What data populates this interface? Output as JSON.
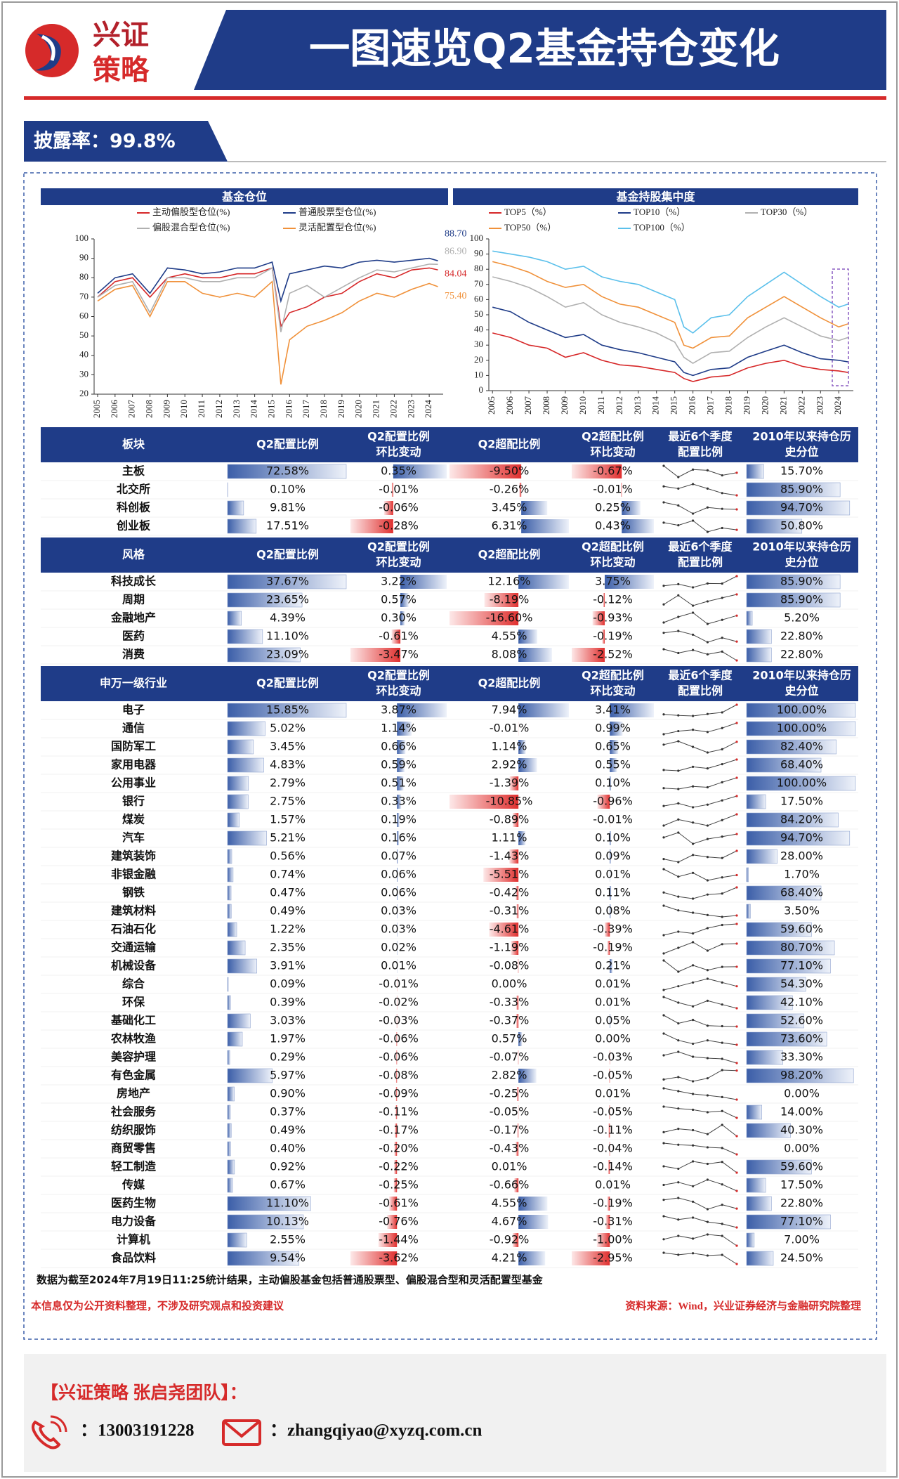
{
  "header": {
    "logo_line1": "兴证",
    "logo_line2": "策略",
    "title": "一图速览Q2基金持仓变化",
    "disclosure": "披露率：99.8%"
  },
  "chart_data": [
    {
      "type": "line",
      "title": "基金仓位",
      "x": [
        2005,
        2006,
        2007,
        2008,
        2009,
        2010,
        2011,
        2012,
        2013,
        2014,
        2015,
        2015.5,
        2016,
        2017,
        2018,
        2019,
        2020,
        2021,
        2022,
        2023,
        2024,
        2024.5
      ],
      "xlim": [
        2004.8,
        2024.8
      ],
      "xticks": [
        2005,
        2006,
        2007,
        2008,
        2009,
        2010,
        2011,
        2012,
        2013,
        2014,
        2015,
        2016,
        2017,
        2018,
        2019,
        2020,
        2021,
        2022,
        2023,
        2024
      ],
      "ylim": [
        20,
        100
      ],
      "yticks": [
        20,
        30,
        40,
        50,
        60,
        70,
        80,
        90,
        100
      ],
      "series": [
        {
          "name": "主动偏股型仓位(%)",
          "color": "#d62728",
          "values": [
            70,
            78,
            80,
            70,
            80,
            82,
            80,
            80,
            82,
            82,
            85,
            55,
            62,
            65,
            70,
            72,
            78,
            82,
            80,
            84,
            85,
            84.04
          ],
          "end_label": "84.04"
        },
        {
          "name": "普通股票型仓位(%)",
          "color": "#1f3c88",
          "values": [
            72,
            80,
            82,
            72,
            85,
            84,
            82,
            83,
            85,
            85,
            88,
            68,
            82,
            84,
            86,
            85,
            88,
            89,
            88,
            89,
            90,
            88.7
          ],
          "end_label": "88.70"
        },
        {
          "name": "偏股混合型仓位(%)",
          "color": "#b0b0b0",
          "values": [
            70,
            76,
            78,
            62,
            80,
            80,
            78,
            78,
            80,
            80,
            85,
            52,
            72,
            76,
            70,
            75,
            80,
            84,
            83,
            85,
            87,
            86.9
          ],
          "end_label": "86.90"
        },
        {
          "name": "灵活配置型仓位(%)",
          "color": "#f0913a",
          "values": [
            68,
            74,
            76,
            60,
            78,
            78,
            72,
            70,
            72,
            70,
            78,
            25,
            48,
            55,
            58,
            62,
            68,
            72,
            70,
            74,
            77,
            75.4
          ],
          "end_label": "75.40"
        }
      ]
    },
    {
      "type": "line",
      "title": "基金持股集中度",
      "x": [
        2005,
        2006,
        2007,
        2008,
        2009,
        2010,
        2011,
        2012,
        2013,
        2014,
        2015,
        2015.5,
        2016,
        2017,
        2018,
        2019,
        2020,
        2021,
        2022,
        2023,
        2024,
        2024.5
      ],
      "xlim": [
        2004.8,
        2024.8
      ],
      "xticks": [
        2005,
        2006,
        2007,
        2008,
        2009,
        2010,
        2011,
        2012,
        2013,
        2014,
        2015,
        2016,
        2017,
        2018,
        2019,
        2020,
        2021,
        2022,
        2023,
        2024
      ],
      "ylim": [
        0,
        100
      ],
      "yticks": [
        0,
        10,
        20,
        30,
        40,
        50,
        60,
        70,
        80,
        90,
        100
      ],
      "series": [
        {
          "name": "TOP5（%）",
          "color": "#d62728",
          "values": [
            38,
            35,
            30,
            28,
            22,
            25,
            20,
            17,
            16,
            14,
            12,
            8,
            6,
            9,
            10,
            15,
            18,
            20,
            16,
            14,
            13,
            12
          ]
        },
        {
          "name": "TOP10（%）",
          "color": "#1f3c88",
          "values": [
            55,
            52,
            45,
            40,
            35,
            37,
            30,
            27,
            25,
            22,
            19,
            12,
            10,
            14,
            15,
            22,
            26,
            30,
            25,
            21,
            20,
            19
          ]
        },
        {
          "name": "TOP30（%）",
          "color": "#b0b0b0",
          "values": [
            75,
            72,
            68,
            62,
            55,
            58,
            50,
            45,
            42,
            38,
            32,
            22,
            18,
            25,
            26,
            35,
            42,
            48,
            42,
            36,
            33,
            35
          ]
        },
        {
          "name": "TOP50（%）",
          "color": "#f0913a",
          "values": [
            85,
            82,
            78,
            72,
            68,
            70,
            62,
            57,
            55,
            50,
            45,
            30,
            28,
            35,
            36,
            48,
            55,
            62,
            55,
            48,
            42,
            44
          ]
        },
        {
          "name": "TOP100（%）",
          "color": "#5bc0eb",
          "values": [
            92,
            90,
            88,
            85,
            80,
            82,
            75,
            72,
            70,
            65,
            60,
            42,
            38,
            48,
            50,
            62,
            70,
            78,
            70,
            62,
            55,
            57
          ]
        }
      ]
    }
  ],
  "tables": [
    {
      "columns": [
        [
          "板块"
        ],
        [
          "Q2配置比例"
        ],
        [
          "Q2配置比例",
          "环比变动"
        ],
        [
          "Q2超配比例"
        ],
        [
          "Q2超配比例",
          "环比变动"
        ],
        [
          "最近6个季度",
          "配置比例"
        ],
        [
          "2010年以来持仓历",
          "史分位"
        ]
      ],
      "rows": [
        [
          "主板",
          "72.58%",
          "0.35%",
          "-9.50%",
          "-0.67%",
          "15.70%"
        ],
        [
          "北交所",
          "0.10%",
          "-0.01%",
          "-0.26%",
          "-0.01%",
          "85.90%"
        ],
        [
          "科创板",
          "9.81%",
          "-0.06%",
          "3.45%",
          "0.25%",
          "94.70%"
        ],
        [
          "创业板",
          "17.51%",
          "-0.28%",
          "6.31%",
          "0.43%",
          "50.80%"
        ]
      ],
      "recent": [
        [
          73.5,
          72.0,
          73.0,
          72.9,
          72.23,
          72.58
        ],
        [
          0.14,
          0.13,
          0.15,
          0.13,
          0.11,
          0.1
        ],
        [
          10.5,
          10.2,
          9.4,
          10.0,
          9.87,
          9.81
        ],
        [
          18.6,
          18.2,
          18.9,
          17.2,
          17.79,
          17.51
        ]
      ]
    },
    {
      "columns": [
        [
          "风格"
        ],
        [
          "Q2配置比例"
        ],
        [
          "Q2配置比例",
          "环比变动"
        ],
        [
          "Q2超配比例"
        ],
        [
          "Q2超配比例",
          "环比变动"
        ],
        [
          "最近6个季度",
          "配置比例"
        ],
        [
          "2010年以来持仓历",
          "史分位"
        ]
      ],
      "rows": [
        [
          "科技成长",
          "37.67%",
          "3.22%",
          "12.16%",
          "3.75%",
          "85.90%"
        ],
        [
          "周期",
          "23.65%",
          "0.57%",
          "-8.19%",
          "-0.12%",
          "85.90%"
        ],
        [
          "金融地产",
          "4.39%",
          "0.30%",
          "-16.60%",
          "-0.93%",
          "5.20%"
        ],
        [
          "医药",
          "11.10%",
          "-0.61%",
          "4.55%",
          "-0.19%",
          "22.80%"
        ],
        [
          "消费",
          "23.09%",
          "-3.47%",
          "8.08%",
          "-2.52%",
          "22.80%"
        ]
      ],
      "recent": [
        [
          33.5,
          34.2,
          32.8,
          34.5,
          34.45,
          37.67
        ],
        [
          22.0,
          23.5,
          21.8,
          22.5,
          23.08,
          23.65
        ],
        [
          3.9,
          4.3,
          4.6,
          3.8,
          4.09,
          4.39
        ],
        [
          12.5,
          12.8,
          12.2,
          11.0,
          11.71,
          11.1
        ],
        [
          27.5,
          26.0,
          27.2,
          25.5,
          26.56,
          23.09
        ]
      ]
    },
    {
      "columns": [
        [
          "申万一级行业"
        ],
        [
          "Q2配置比例"
        ],
        [
          "Q2配置比例",
          "环比变动"
        ],
        [
          "Q2超配比例"
        ],
        [
          "Q2超配比例",
          "环比变动"
        ],
        [
          "最近6个季度",
          "配置比例"
        ],
        [
          "2010年以来持仓历",
          "史分位"
        ]
      ],
      "rows": [
        [
          "电子",
          "15.85%",
          "3.87%",
          "7.94%",
          "3.41%",
          "100.00%"
        ],
        [
          "通信",
          "5.02%",
          "1.14%",
          "-0.01%",
          "0.99%",
          "100.00%"
        ],
        [
          "国防军工",
          "3.45%",
          "0.66%",
          "1.14%",
          "0.65%",
          "82.40%"
        ],
        [
          "家用电器",
          "4.83%",
          "0.59%",
          "2.92%",
          "0.55%",
          "68.40%"
        ],
        [
          "公用事业",
          "2.79%",
          "0.51%",
          "-1.39%",
          "0.10%",
          "100.00%"
        ],
        [
          "银行",
          "2.75%",
          "0.33%",
          "-10.85%",
          "-0.96%",
          "17.50%"
        ],
        [
          "煤炭",
          "1.57%",
          "0.19%",
          "-0.89%",
          "-0.01%",
          "84.20%"
        ],
        [
          "汽车",
          "5.21%",
          "0.16%",
          "1.11%",
          "0.10%",
          "94.70%"
        ],
        [
          "建筑装饰",
          "0.56%",
          "0.07%",
          "-1.43%",
          "0.09%",
          "28.00%"
        ],
        [
          "非银金融",
          "0.74%",
          "0.06%",
          "-5.51%",
          "0.01%",
          "1.70%"
        ],
        [
          "钢铁",
          "0.47%",
          "0.06%",
          "-0.42%",
          "0.11%",
          "68.40%"
        ],
        [
          "建筑材料",
          "0.49%",
          "0.03%",
          "-0.31%",
          "0.08%",
          "3.50%"
        ],
        [
          "石油石化",
          "1.22%",
          "0.03%",
          "-4.61%",
          "-0.39%",
          "59.60%"
        ],
        [
          "交通运输",
          "2.35%",
          "0.02%",
          "-1.19%",
          "-0.19%",
          "80.70%"
        ],
        [
          "机械设备",
          "3.91%",
          "0.01%",
          "-0.08%",
          "0.21%",
          "77.10%"
        ],
        [
          "综合",
          "0.09%",
          "-0.01%",
          "0.00%",
          "0.01%",
          "54.30%"
        ],
        [
          "环保",
          "0.39%",
          "-0.02%",
          "-0.33%",
          "0.01%",
          "42.10%"
        ],
        [
          "基础化工",
          "3.03%",
          "-0.03%",
          "-0.37%",
          "0.05%",
          "52.60%"
        ],
        [
          "农林牧渔",
          "1.97%",
          "-0.06%",
          "0.57%",
          "0.00%",
          "73.60%"
        ],
        [
          "美容护理",
          "0.29%",
          "-0.06%",
          "-0.07%",
          "-0.03%",
          "33.30%"
        ],
        [
          "有色金属",
          "5.97%",
          "-0.08%",
          "2.82%",
          "-0.05%",
          "98.20%"
        ],
        [
          "房地产",
          "0.90%",
          "-0.09%",
          "-0.25%",
          "0.01%",
          "0.00%"
        ],
        [
          "社会服务",
          "0.37%",
          "-0.11%",
          "-0.05%",
          "-0.05%",
          "14.00%"
        ],
        [
          "纺织服饰",
          "0.49%",
          "-0.17%",
          "-0.17%",
          "-0.11%",
          "40.30%"
        ],
        [
          "商贸零售",
          "0.40%",
          "-0.20%",
          "-0.43%",
          "-0.04%",
          "0.00%"
        ],
        [
          "轻工制造",
          "0.92%",
          "-0.22%",
          "0.01%",
          "-0.14%",
          "59.60%"
        ],
        [
          "传媒",
          "0.67%",
          "-0.25%",
          "-0.66%",
          "0.01%",
          "17.50%"
        ],
        [
          "医药生物",
          "11.10%",
          "-0.61%",
          "4.55%",
          "-0.19%",
          "22.80%"
        ],
        [
          "电力设备",
          "10.13%",
          "-0.76%",
          "4.67%",
          "-0.31%",
          "77.10%"
        ],
        [
          "计算机",
          "2.55%",
          "-1.44%",
          "-0.92%",
          "-1.00%",
          "7.00%"
        ],
        [
          "食品饮料",
          "9.54%",
          "-3.62%",
          "4.21%",
          "-2.95%",
          "24.50%"
        ]
      ],
      "recent": [
        [
          11.0,
          10.5,
          10.2,
          11.2,
          11.98,
          15.85
        ],
        [
          2.5,
          3.2,
          3.5,
          3.0,
          3.88,
          5.02
        ],
        [
          3.2,
          3.5,
          3.0,
          2.5,
          2.79,
          3.45
        ],
        [
          3.5,
          3.4,
          3.9,
          3.7,
          4.24,
          4.83
        ],
        [
          1.6,
          1.5,
          1.8,
          1.7,
          2.28,
          2.79
        ],
        [
          2.0,
          2.2,
          1.9,
          2.1,
          2.42,
          2.75
        ],
        [
          1.2,
          1.4,
          1.3,
          1.2,
          1.38,
          1.57
        ],
        [
          5.0,
          5.3,
          4.6,
          4.9,
          5.05,
          5.21
        ],
        [
          0.48,
          0.45,
          0.52,
          0.5,
          0.49,
          0.56
        ],
        [
          0.9,
          0.7,
          0.8,
          0.6,
          0.68,
          0.74
        ],
        [
          0.42,
          0.38,
          0.36,
          0.4,
          0.41,
          0.47
        ],
        [
          0.7,
          0.6,
          0.55,
          0.5,
          0.46,
          0.49
        ],
        [
          0.9,
          1.0,
          0.95,
          1.1,
          1.19,
          1.22
        ],
        [
          2.0,
          2.2,
          2.4,
          2.1,
          2.33,
          2.35
        ],
        [
          4.3,
          3.6,
          4.0,
          3.7,
          3.9,
          3.91
        ],
        [
          0.08,
          0.09,
          0.1,
          0.11,
          0.1,
          0.09
        ],
        [
          0.45,
          0.42,
          0.4,
          0.43,
          0.41,
          0.39
        ],
        [
          4.0,
          3.3,
          3.6,
          3.1,
          3.06,
          3.03
        ],
        [
          2.3,
          2.1,
          2.0,
          2.1,
          2.03,
          1.97
        ],
        [
          0.4,
          0.45,
          0.38,
          0.36,
          0.35,
          0.29
        ],
        [
          4.5,
          4.9,
          4.2,
          4.7,
          6.05,
          5.97
        ],
        [
          1.3,
          1.2,
          1.1,
          1.05,
          0.99,
          0.9
        ],
        [
          0.55,
          0.52,
          0.5,
          0.46,
          0.48,
          0.37
        ],
        [
          0.55,
          0.6,
          0.58,
          0.52,
          0.66,
          0.49
        ],
        [
          0.75,
          0.7,
          0.68,
          0.62,
          0.6,
          0.4
        ],
        [
          1.05,
          1.0,
          1.15,
          1.1,
          1.14,
          0.92
        ],
        [
          0.9,
          1.0,
          0.85,
          1.1,
          0.92,
          0.67
        ],
        [
          12.5,
          12.8,
          12.2,
          11.0,
          11.71,
          11.1
        ],
        [
          12.5,
          11.8,
          12.2,
          11.3,
          10.89,
          10.13
        ],
        [
          3.5,
          4.0,
          3.6,
          4.2,
          3.99,
          2.55
        ],
        [
          14.0,
          13.2,
          13.8,
          12.9,
          13.16,
          9.54
        ]
      ]
    }
  ],
  "footnote": "数据为截至2024年7月19日11:25统计结果，主动偏股基金包括普通股票型、偏股混合型和灵活配置型基金",
  "disclaimer": "本信息仅为公开资料整理，不涉及研究观点和投资建议",
  "source": "资料来源：Wind，兴业证券经济与金融研究院整理",
  "contact": {
    "team": "【兴证策略 张启尧团队】：",
    "phone": "：13003191228",
    "email": "：zhangqiyao@xyzq.com.cn"
  }
}
